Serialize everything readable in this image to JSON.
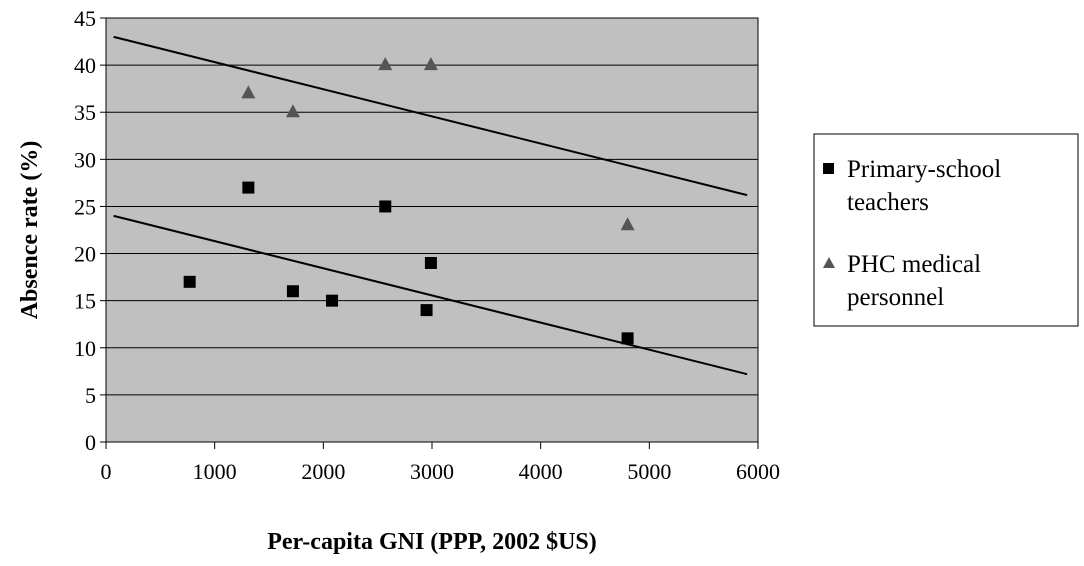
{
  "chart_data": {
    "type": "scatter",
    "xlabel": "Per-capita GNI (PPP, 2002 $US)",
    "ylabel": "Absence rate (%)",
    "xlim": [
      0,
      6000
    ],
    "ylim": [
      0,
      45
    ],
    "x_ticks": [
      0,
      1000,
      2000,
      3000,
      4000,
      5000,
      6000
    ],
    "y_ticks": [
      0,
      5,
      10,
      15,
      20,
      25,
      30,
      35,
      40,
      45
    ],
    "grid": "horizontal",
    "legend_position": "right",
    "plot_background": "#c0c0c0",
    "series": [
      {
        "name": "Primary-school teachers",
        "marker": "square",
        "color": "#000000",
        "points": [
          {
            "x": 770,
            "y": 17
          },
          {
            "x": 1310,
            "y": 27
          },
          {
            "x": 1720,
            "y": 16
          },
          {
            "x": 2080,
            "y": 15
          },
          {
            "x": 2570,
            "y": 25
          },
          {
            "x": 2950,
            "y": 14
          },
          {
            "x": 2990,
            "y": 19
          },
          {
            "x": 4800,
            "y": 11
          }
        ],
        "trendline": {
          "x": [
            70,
            5900
          ],
          "y": [
            24,
            7.2
          ]
        }
      },
      {
        "name": "PHC medical personnel",
        "marker": "triangle",
        "color": "#555555",
        "points": [
          {
            "x": 1310,
            "y": 37
          },
          {
            "x": 1720,
            "y": 35
          },
          {
            "x": 2570,
            "y": 40
          },
          {
            "x": 2990,
            "y": 40
          },
          {
            "x": 4800,
            "y": 23
          }
        ],
        "trendline": {
          "x": [
            70,
            5900
          ],
          "y": [
            43,
            26.2
          ]
        }
      }
    ],
    "legend": [
      {
        "label_lines": [
          "Primary-school",
          "teachers"
        ],
        "marker": "square"
      },
      {
        "label_lines": [
          "PHC medical",
          "personnel"
        ],
        "marker": "triangle"
      }
    ]
  }
}
